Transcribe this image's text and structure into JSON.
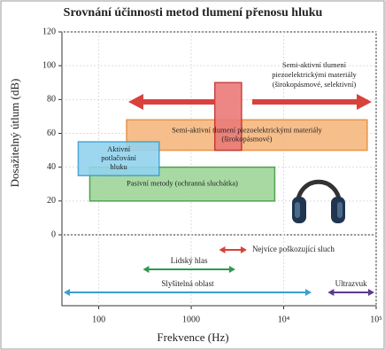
{
  "chart_data": {
    "type": "range_boxes",
    "title": "Srovnání účinnosti metod tlumení přenosu hluku",
    "y_label": "Dosažitelný útlum (dB)",
    "x_label": "Frekvence (Hz)",
    "log_x": true,
    "grid": true,
    "xlim": [
      40,
      100000
    ],
    "ylim": [
      0,
      120
    ],
    "xticks": [
      100,
      1000,
      {
        "value": 10000,
        "label": "10⁴"
      },
      {
        "value": 100000,
        "label": "10⁵"
      }
    ],
    "yticks": [
      0,
      20,
      40,
      60,
      80,
      100,
      120
    ],
    "boxes": [
      {
        "lines": [
          "Semi-aktivní tlumení piezoelektrickými materiály",
          "(širokopásmové)"
        ],
        "x": [
          200,
          80000
        ],
        "y": [
          50,
          68
        ],
        "color": "#f6b77e",
        "stroke": "#e68a36"
      },
      {
        "lines": [
          "Pasivní metody (ochranná sluchátka)"
        ],
        "x": [
          80,
          8000
        ],
        "y": [
          20,
          40
        ],
        "color": "#9fd59a",
        "stroke": "#3e9a3e"
      },
      {
        "lines": [
          "Aktivní",
          "potlačování",
          "hluku"
        ],
        "x": [
          60,
          450
        ],
        "y": [
          35,
          55
        ],
        "color": "#93d3ee",
        "stroke": "#3a9fd0"
      },
      {
        "lines": [],
        "x": [
          1800,
          3500
        ],
        "y": [
          50,
          90
        ],
        "color": "#ec7b78",
        "stroke": "#c0302e"
      }
    ],
    "annotation": [
      "Semi-aktivní tlumení",
      "piezoelektrickými materiály",
      "(širokopásmové, selektivní)"
    ],
    "bands": [
      {
        "name": "Nejvíce poškozující sluch",
        "x": [
          2000,
          4000
        ],
        "color": "#d9413c"
      },
      {
        "name": "Lidský hlas",
        "x": [
          300,
          3000
        ],
        "color": "#2e9a4e"
      },
      {
        "name": "Slyšitelná oblast",
        "x": [
          20,
          20000
        ],
        "color": "#3a9fd0"
      },
      {
        "name": "Ultrazvuk",
        "x": [
          30000,
          100000
        ],
        "color": "#5b3b8a"
      }
    ]
  }
}
